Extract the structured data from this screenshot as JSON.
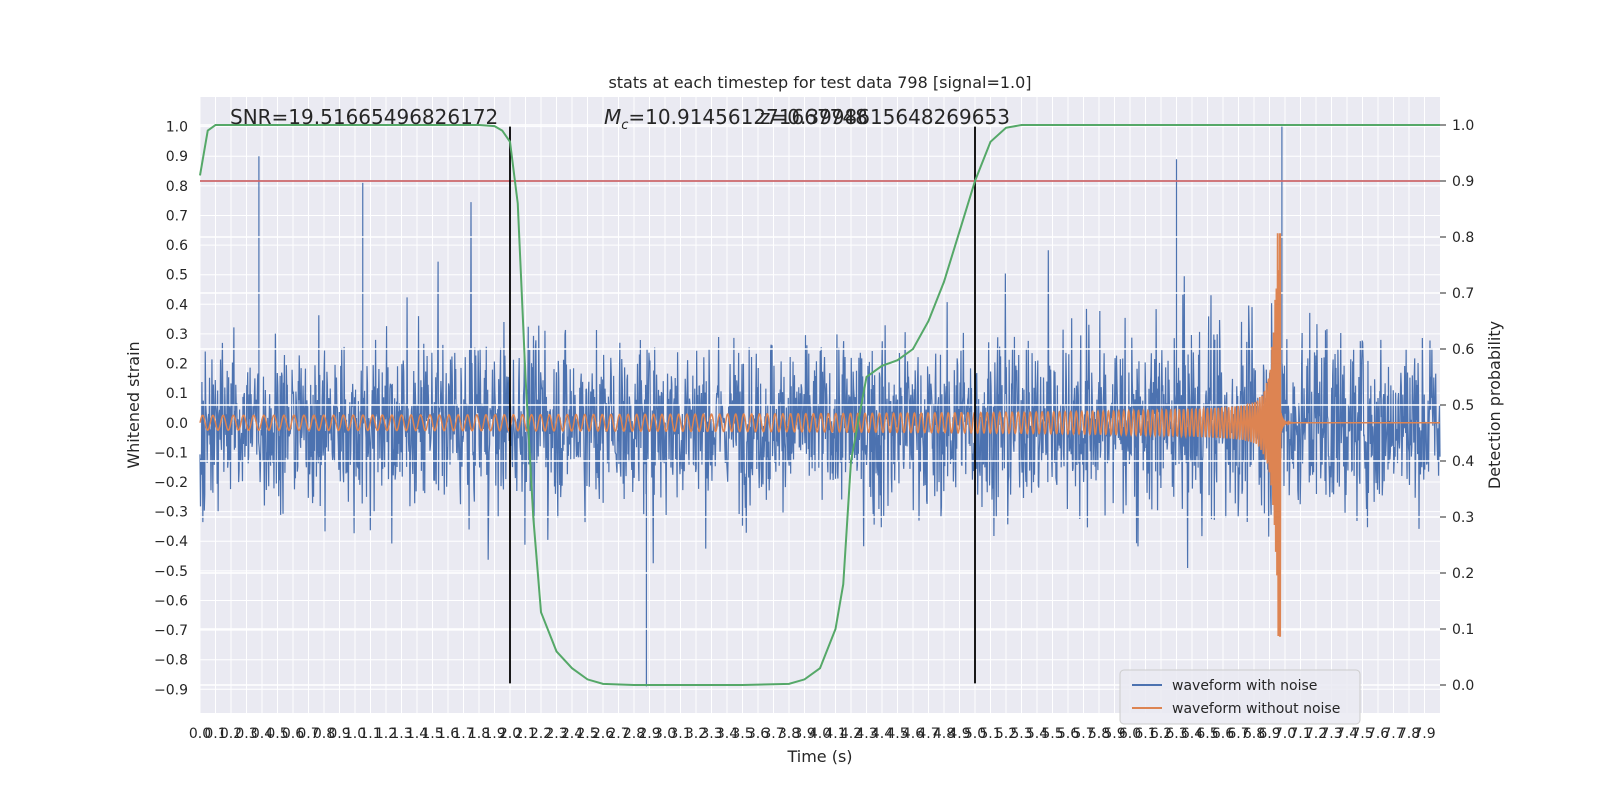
{
  "chart_data": {
    "type": "line",
    "title": "stats at each timestep for test data 798 [signal=1.0]",
    "xlabel": "Time (s)",
    "ylabel": "Whitened strain",
    "y2label": "Detection probability",
    "xlim": [
      0.0,
      8.0
    ],
    "ylim": [
      -0.98,
      1.1
    ],
    "y2lim": [
      -0.05,
      1.05
    ],
    "x_ticks": [
      "0.0",
      "0.1",
      "0.2",
      "0.3",
      "0.4",
      "0.5",
      "0.6",
      "0.7",
      "0.8",
      "0.9",
      "1.0",
      "1.1",
      "1.2",
      "1.3",
      "1.4",
      "1.5",
      "1.6",
      "1.7",
      "1.8",
      "1.9",
      "2.0",
      "2.1",
      "2.2",
      "2.3",
      "2.4",
      "2.5",
      "2.6",
      "2.7",
      "2.8",
      "2.9",
      "3.0",
      "3.1",
      "3.2",
      "3.3",
      "3.4",
      "3.5",
      "3.6",
      "3.7",
      "3.8",
      "3.9",
      "4.0",
      "4.1",
      "4.2",
      "4.3",
      "4.4",
      "4.5",
      "4.6",
      "4.7",
      "4.8",
      "4.9",
      "5.0",
      "5.1",
      "5.2",
      "5.3",
      "5.4",
      "5.5",
      "5.6",
      "5.7",
      "5.8",
      "5.9",
      "6.0",
      "6.1",
      "6.2",
      "6.3",
      "6.4",
      "6.5",
      "6.6",
      "6.7",
      "6.8",
      "6.9",
      "7.0",
      "7.1",
      "7.2",
      "7.3",
      "7.4",
      "7.5",
      "7.6",
      "7.7",
      "7.8",
      "7.9"
    ],
    "y_ticks": [
      "−0.9",
      "−0.8",
      "−0.7",
      "−0.6",
      "−0.5",
      "−0.4",
      "−0.3",
      "−0.2",
      "−0.1",
      "0.0",
      "0.1",
      "0.2",
      "0.3",
      "0.4",
      "0.5",
      "0.6",
      "0.7",
      "0.8",
      "0.9",
      "1.0"
    ],
    "y2_ticks": [
      "0.0",
      "0.1",
      "0.2",
      "0.3",
      "0.4",
      "0.5",
      "0.6",
      "0.7",
      "0.8",
      "0.9",
      "1.0"
    ],
    "series": [
      {
        "name": "waveform with noise",
        "color": "#4c72b0",
        "amplitude_envelope": {
          "x": [
            0.0,
            4.0,
            6.0,
            6.9,
            7.0,
            7.9
          ],
          "noise_core": [
            0.35,
            0.35,
            0.38,
            0.42,
            0.4,
            0.35
          ]
        },
        "peaks": [
          {
            "x": 0.38,
            "y": 0.9
          },
          {
            "x": 1.05,
            "y": 0.81
          },
          {
            "x": 2.88,
            "y": -0.89
          },
          {
            "x": 6.3,
            "y": 0.89
          },
          {
            "x": 6.98,
            "y": 1.0
          }
        ]
      },
      {
        "name": "waveform without noise",
        "color": "#dd8452",
        "chirp": {
          "start_amp": 0.025,
          "start_freq_hz": 15,
          "merger_x": 6.97,
          "peak_amp": 0.64,
          "min_amp": -0.72
        }
      },
      {
        "name": "",
        "axis": "right",
        "color": "#55a868",
        "x": [
          0.0,
          0.05,
          0.1,
          0.2,
          0.5,
          1.0,
          1.5,
          1.8,
          1.9,
          1.95,
          2.0,
          2.05,
          2.1,
          2.15,
          2.2,
          2.3,
          2.4,
          2.5,
          2.6,
          2.8,
          3.0,
          3.5,
          3.8,
          3.9,
          4.0,
          4.1,
          4.15,
          4.2,
          4.3,
          4.4,
          4.5,
          4.6,
          4.7,
          4.8,
          4.9,
          5.0,
          5.1,
          5.2,
          5.3,
          5.5,
          6.0,
          6.5,
          7.0,
          7.5,
          8.0
        ],
        "values": [
          0.91,
          0.99,
          1.0,
          1.0,
          1.0,
          1.0,
          1.0,
          1.0,
          0.998,
          0.99,
          0.97,
          0.86,
          0.55,
          0.3,
          0.13,
          0.06,
          0.03,
          0.01,
          0.002,
          0.0,
          0.0,
          0.0,
          0.002,
          0.01,
          0.03,
          0.1,
          0.18,
          0.4,
          0.55,
          0.57,
          0.58,
          0.6,
          0.65,
          0.72,
          0.81,
          0.9,
          0.97,
          0.995,
          1.0,
          1.0,
          1.0,
          1.0,
          1.0,
          1.0,
          1.0
        ]
      },
      {
        "name": "",
        "type": "hline",
        "axis": "right",
        "color": "#c44e52",
        "y": 0.9
      },
      {
        "name": "",
        "type": "vline",
        "color": "#000000",
        "x": 2.0
      },
      {
        "name": "",
        "type": "vline",
        "color": "#000000",
        "x": 5.0
      }
    ],
    "annotations": {
      "snr": "SNR=19.51665496826172",
      "mc": "=10.914561271667748",
      "mc_prefix_italic": "M",
      "mc_sub": "c",
      "z": "z=0.3998615648269653"
    },
    "legend": {
      "placement": "lower-right",
      "entries": [
        "waveform with noise",
        "waveform without noise"
      ]
    },
    "grid": true,
    "background": "#eaeaf2"
  }
}
